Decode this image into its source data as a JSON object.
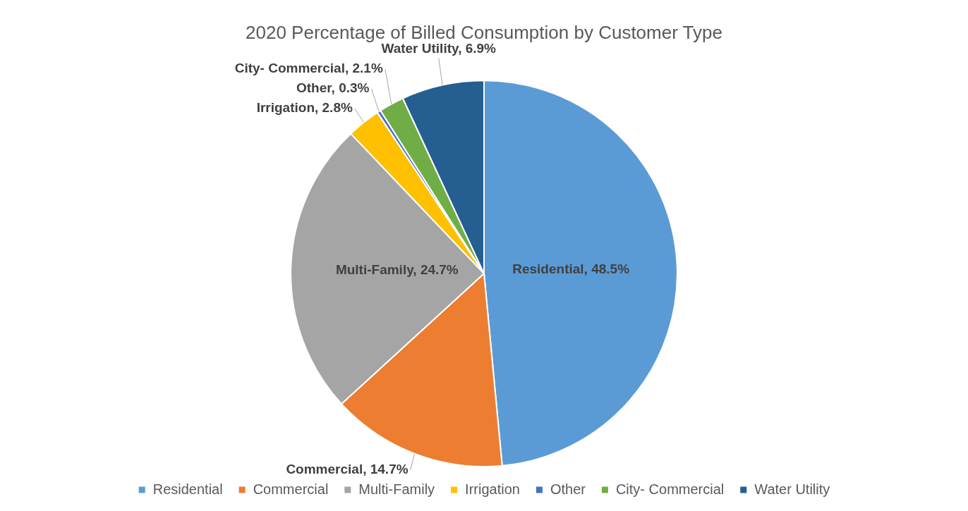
{
  "chart_data": {
    "type": "pie",
    "title": "2020 Percentage of Billed Consumption by Customer Type",
    "categories": [
      "Residential",
      "Commercial",
      "Multi-Family",
      "Irrigation",
      "Other",
      "City- Commercial",
      "Water Utility"
    ],
    "values": [
      48.5,
      14.7,
      24.7,
      2.8,
      0.3,
      2.1,
      6.9
    ],
    "colors": [
      "#5b9bd5",
      "#ed7d31",
      "#a5a5a5",
      "#ffc000",
      "#4472c4",
      "#70ad47",
      "#255e91"
    ],
    "value_labels": [
      "Residential, 48.5%",
      "Commercial, 14.7%",
      "Multi-Family, 24.7%",
      "Irrigation, 2.8%",
      "Other, 0.3%",
      "City- Commercial, 2.1%",
      "Water Utility, 6.9%"
    ],
    "legend": "bottom"
  }
}
